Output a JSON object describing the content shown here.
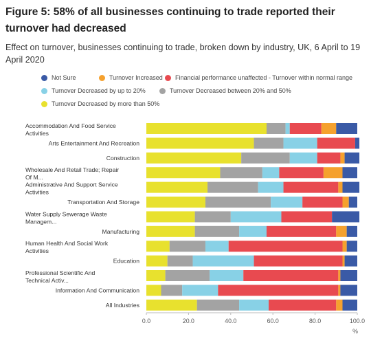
{
  "title": "Figure 5: 58% of all businesses continuing to trade reported their turnover had decreased",
  "subtitle": "Effect on turnover, businesses continuing to trade, broken down by industry, UK, 6 April to 19 April 2020",
  "chart_data": {
    "type": "bar",
    "orientation": "horizontal",
    "stacked": true,
    "xlabel": "%",
    "ylabel": "",
    "xlim": [
      0,
      100
    ],
    "xticks": [
      "0.0",
      "20.0",
      "40.0",
      "60.0",
      "80.0",
      "100.0"
    ],
    "grid": false,
    "legend_position": "top",
    "categories": [
      "Accommodation And Food Service Activities",
      "Arts Entertainment And Recreation",
      "Construction",
      "Wholesale And Retail Trade; Repair Of M...",
      "Administrative And Support Service Activities",
      "Transportation And Storage",
      "Water Supply Sewerage Waste Managem...",
      "Manufacturing",
      "Human Health And Social Work Activities",
      "Education",
      "Professional Scientific And Technical Activ...",
      "Information And Communication",
      "All Industries"
    ],
    "series": [
      {
        "name": "Turnover Decreased by more than 50%",
        "color": "#e8e12e",
        "values": [
          57,
          51,
          45,
          35,
          29,
          28,
          23,
          23,
          11,
          10,
          9,
          7,
          24
        ]
      },
      {
        "name": "Turnover Decreased between 20% and 50%",
        "color": "#a3a3a3",
        "values": [
          9,
          14,
          23,
          20,
          24,
          31,
          17,
          21,
          17,
          12,
          21,
          10,
          20
        ]
      },
      {
        "name": "Turnover Decreased by up to 20%",
        "color": "#88d1e6",
        "values": [
          2,
          16,
          13,
          8,
          12,
          15,
          24,
          13,
          11,
          29,
          16,
          17,
          14
        ]
      },
      {
        "name": "Financial performance unaffected - Turnover within normal range",
        "color": "#e84a50",
        "values": [
          15,
          18,
          11,
          21,
          26,
          19,
          24,
          33,
          54,
          42,
          45,
          57,
          32
        ]
      },
      {
        "name": "Turnover Increased",
        "color": "#f5a12e",
        "values": [
          7,
          0,
          2,
          9,
          2,
          3,
          0,
          5,
          2,
          1,
          1,
          1,
          3
        ]
      },
      {
        "name": "Not Sure",
        "color": "#3a5aa6",
        "values": [
          10,
          2,
          7,
          7,
          8,
          4,
          13,
          5,
          5,
          6,
          8,
          8,
          7
        ]
      }
    ]
  },
  "legend_order": [
    5,
    4,
    3,
    2,
    1,
    0
  ],
  "legend_labels": [
    "Not Sure",
    "Turnover Increased",
    "Financial performance unaffected - Turnover within normal range",
    "Turnover Decreased by up to 20%",
    "Turnover Decreased between 20% and 50%",
    "Turnover Decreased by more than 50%"
  ],
  "legend_colors": [
    "#3a5aa6",
    "#f5a12e",
    "#e84a50",
    "#88d1e6",
    "#a3a3a3",
    "#e8e12e"
  ]
}
